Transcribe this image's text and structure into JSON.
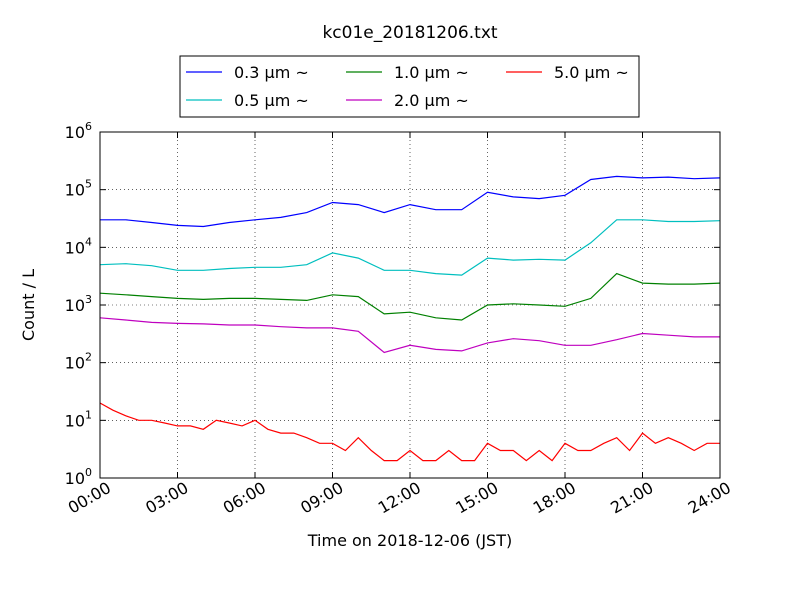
{
  "chart_data": {
    "type": "line",
    "title": "kc01e_20181206.txt",
    "xlabel": "Time on 2018-12-06 (JST)",
    "ylabel": "Count / L",
    "x_tick_labels": [
      "00:00",
      "03:00",
      "06:00",
      "09:00",
      "12:00",
      "15:00",
      "18:00",
      "21:00",
      "24:00"
    ],
    "x_tick_hours": [
      0,
      3,
      6,
      9,
      12,
      15,
      18,
      21,
      24
    ],
    "xlim_hours": [
      0,
      24
    ],
    "y_scale": "log",
    "ylim": [
      1,
      1000000
    ],
    "y_ticks": [
      {
        "base": "10",
        "exp": "0"
      },
      {
        "base": "10",
        "exp": "1"
      },
      {
        "base": "10",
        "exp": "2"
      },
      {
        "base": "10",
        "exp": "3"
      },
      {
        "base": "10",
        "exp": "4"
      },
      {
        "base": "10",
        "exp": "5"
      },
      {
        "base": "10",
        "exp": "6"
      }
    ],
    "grid": true,
    "legend_position": "top-center",
    "series": [
      {
        "name": "0.3 μm ~",
        "color": "#0000ff",
        "x": [
          0,
          1,
          2,
          3,
          4,
          5,
          6,
          7,
          8,
          9,
          10,
          11,
          12,
          13,
          14,
          15,
          16,
          17,
          18,
          19,
          20,
          21,
          22,
          23,
          24
        ],
        "values": [
          30000,
          30000,
          27000,
          24000,
          23000,
          27000,
          30000,
          33000,
          40000,
          60000,
          55000,
          40000,
          55000,
          45000,
          45000,
          90000,
          75000,
          70000,
          80000,
          150000,
          170000,
          160000,
          165000,
          155000,
          160000
        ]
      },
      {
        "name": "0.5 μm ~",
        "color": "#00bfbf",
        "x": [
          0,
          1,
          2,
          3,
          4,
          5,
          6,
          7,
          8,
          9,
          10,
          11,
          12,
          13,
          14,
          15,
          16,
          17,
          18,
          19,
          20,
          21,
          22,
          23,
          24
        ],
        "values": [
          5000,
          5200,
          4800,
          4000,
          4000,
          4300,
          4500,
          4500,
          5000,
          8000,
          6500,
          4000,
          4000,
          3500,
          3300,
          6500,
          6000,
          6200,
          6000,
          12000,
          30000,
          30000,
          28000,
          28000,
          29000
        ]
      },
      {
        "name": "1.0 μm ~",
        "color": "#008000",
        "x": [
          0,
          1,
          2,
          3,
          4,
          5,
          6,
          7,
          8,
          9,
          10,
          11,
          12,
          13,
          14,
          15,
          16,
          17,
          18,
          19,
          20,
          21,
          22,
          23,
          24
        ],
        "values": [
          1600,
          1500,
          1400,
          1300,
          1250,
          1300,
          1300,
          1250,
          1200,
          1500,
          1400,
          700,
          750,
          600,
          550,
          1000,
          1050,
          1000,
          950,
          1300,
          3500,
          2400,
          2300,
          2300,
          2400
        ]
      },
      {
        "name": "2.0 μm ~",
        "color": "#bf00bf",
        "x": [
          0,
          1,
          2,
          3,
          4,
          5,
          6,
          7,
          8,
          9,
          10,
          11,
          12,
          13,
          14,
          15,
          16,
          17,
          18,
          19,
          20,
          21,
          22,
          23,
          24
        ],
        "values": [
          600,
          550,
          500,
          480,
          470,
          450,
          450,
          420,
          400,
          400,
          350,
          150,
          200,
          170,
          160,
          220,
          260,
          240,
          200,
          200,
          250,
          320,
          300,
          280,
          280
        ]
      },
      {
        "name": "5.0 μm ~",
        "color": "#ff0000",
        "x": [
          0,
          0.5,
          1,
          1.5,
          2,
          2.5,
          3,
          3.5,
          4,
          4.5,
          5,
          5.5,
          6,
          6.5,
          7,
          7.5,
          8,
          8.5,
          9,
          9.5,
          10,
          10.5,
          11,
          11.5,
          12,
          12.5,
          13,
          13.5,
          14,
          14.5,
          15,
          15.5,
          16,
          16.5,
          17,
          17.5,
          18,
          18.5,
          19,
          19.5,
          20,
          20.5,
          21,
          21.5,
          22,
          22.5,
          23,
          23.5,
          24
        ],
        "values": [
          20,
          15,
          12,
          10,
          10,
          9,
          8,
          8,
          7,
          10,
          9,
          8,
          10,
          7,
          6,
          6,
          5,
          4,
          4,
          3,
          5,
          3,
          2,
          2,
          3,
          2,
          2,
          3,
          2,
          2,
          4,
          3,
          3,
          2,
          3,
          2,
          4,
          3,
          3,
          4,
          5,
          3,
          6,
          4,
          5,
          4,
          3,
          4,
          4
        ]
      }
    ]
  }
}
